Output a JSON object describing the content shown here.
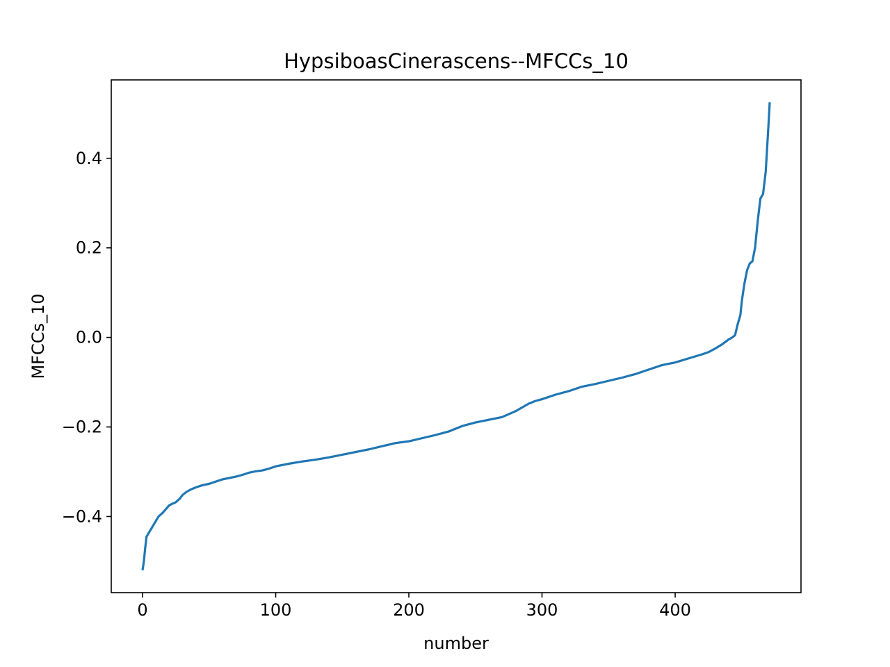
{
  "chart_data": {
    "type": "line",
    "title": "HypsiboasCinerascens--MFCCs_10",
    "xlabel": "number",
    "ylabel": "MFCCs_10",
    "xlim": [
      -23.5,
      494.5
    ],
    "ylim": [
      -0.57,
      0.575
    ],
    "x_ticks": [
      0,
      100,
      200,
      300,
      400
    ],
    "x_tick_labels": [
      "0",
      "100",
      "200",
      "300",
      "400"
    ],
    "y_ticks": [
      -0.4,
      -0.2,
      0.0,
      0.2,
      0.4
    ],
    "y_tick_labels": [
      "−0.4",
      "−0.2",
      "0.0",
      "0.2",
      "0.4"
    ],
    "grid": false,
    "series": [
      {
        "color": "#1f77b4",
        "x": [
          0,
          1,
          2,
          3,
          5,
          8,
          10,
          12,
          15,
          18,
          20,
          22,
          25,
          28,
          30,
          33,
          36,
          40,
          45,
          50,
          55,
          60,
          65,
          70,
          75,
          80,
          85,
          90,
          95,
          100,
          110,
          120,
          130,
          140,
          150,
          160,
          170,
          180,
          190,
          200,
          210,
          220,
          230,
          240,
          250,
          260,
          270,
          280,
          290,
          295,
          300,
          310,
          320,
          330,
          340,
          350,
          360,
          370,
          380,
          390,
          400,
          410,
          420,
          425,
          430,
          435,
          440,
          443,
          445,
          447,
          449,
          450,
          452,
          454,
          456,
          458,
          460,
          462,
          464,
          466,
          468,
          469,
          470,
          471
        ],
        "y": [
          -0.52,
          -0.5,
          -0.47,
          -0.445,
          -0.435,
          -0.42,
          -0.41,
          -0.4,
          -0.392,
          -0.382,
          -0.375,
          -0.372,
          -0.368,
          -0.36,
          -0.352,
          -0.345,
          -0.34,
          -0.335,
          -0.33,
          -0.327,
          -0.322,
          -0.317,
          -0.314,
          -0.311,
          -0.307,
          -0.302,
          -0.299,
          -0.297,
          -0.293,
          -0.288,
          -0.282,
          -0.277,
          -0.273,
          -0.268,
          -0.262,
          -0.256,
          -0.25,
          -0.243,
          -0.236,
          -0.232,
          -0.225,
          -0.218,
          -0.21,
          -0.198,
          -0.19,
          -0.184,
          -0.178,
          -0.165,
          -0.148,
          -0.142,
          -0.138,
          -0.128,
          -0.12,
          -0.11,
          -0.104,
          -0.097,
          -0.09,
          -0.082,
          -0.072,
          -0.062,
          -0.056,
          -0.047,
          -0.038,
          -0.033,
          -0.025,
          -0.016,
          -0.005,
          0.0,
          0.005,
          0.03,
          0.05,
          0.08,
          0.12,
          0.15,
          0.165,
          0.17,
          0.2,
          0.26,
          0.31,
          0.32,
          0.37,
          0.42,
          0.47,
          0.525
        ]
      }
    ]
  }
}
